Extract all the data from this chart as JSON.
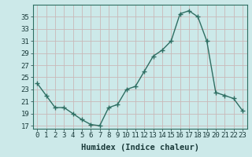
{
  "x": [
    0,
    1,
    2,
    3,
    4,
    5,
    6,
    7,
    8,
    9,
    10,
    11,
    12,
    13,
    14,
    15,
    16,
    17,
    18,
    19,
    20,
    21,
    22,
    23
  ],
  "y": [
    24,
    22,
    20,
    20,
    19,
    18,
    17.2,
    17,
    20,
    20.5,
    23,
    23.5,
    26,
    28.5,
    29.5,
    31,
    35.5,
    36,
    35,
    31,
    22.5,
    22,
    21.5,
    19.5
  ],
  "line_color": "#2e6e62",
  "marker_color": "#2e6e62",
  "bg_color": "#cce9e9",
  "grid_color": "#c9b8b8",
  "xlabel": "Humidex (Indice chaleur)",
  "yticks": [
    17,
    19,
    21,
    23,
    25,
    27,
    29,
    31,
    33,
    35
  ],
  "xticks": [
    0,
    1,
    2,
    3,
    4,
    5,
    6,
    7,
    8,
    9,
    10,
    11,
    12,
    13,
    14,
    15,
    16,
    17,
    18,
    19,
    20,
    21,
    22,
    23
  ],
  "ylim": [
    16.5,
    37.0
  ],
  "xlim": [
    -0.5,
    23.5
  ],
  "tick_fontsize": 6.5,
  "xlabel_fontsize": 7.5
}
